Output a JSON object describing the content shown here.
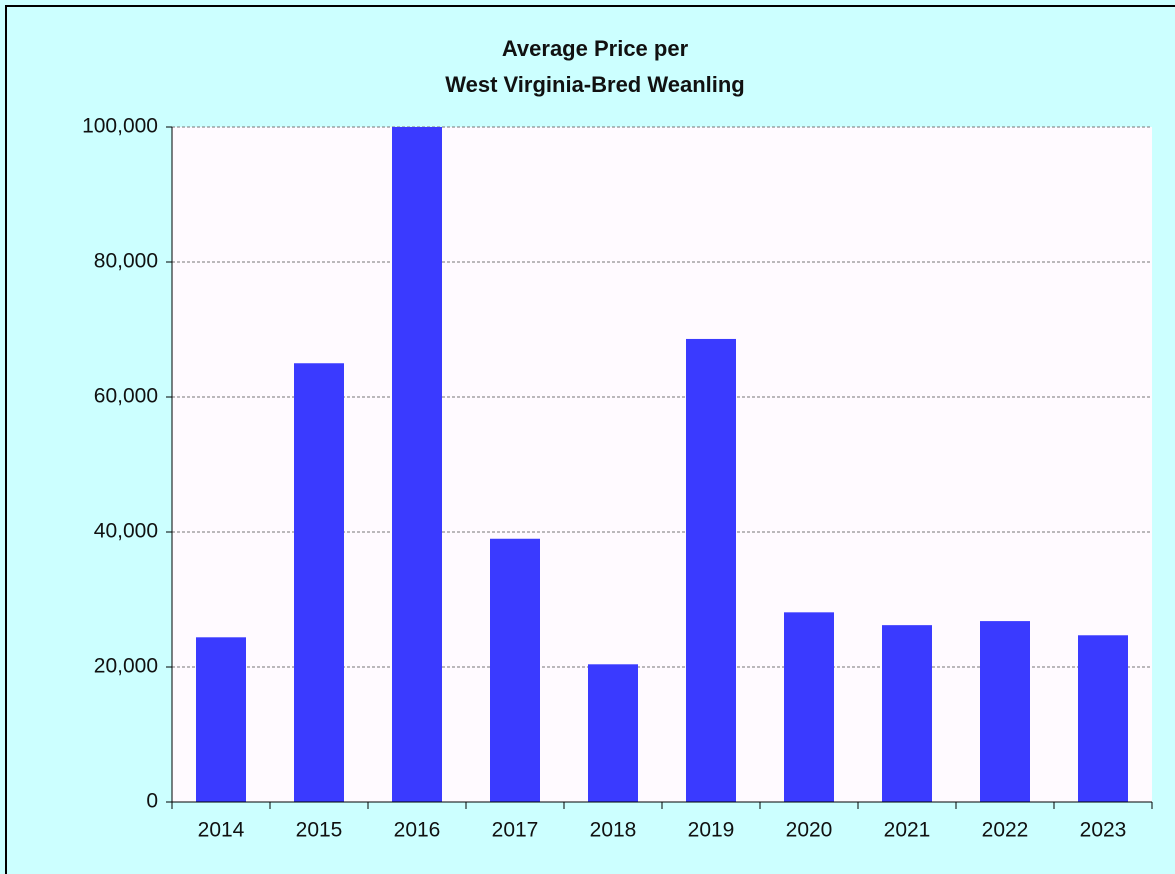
{
  "chart_data": {
    "type": "bar",
    "title": [
      "Average Price per",
      "West Virginia-Bred Weanling"
    ],
    "categories": [
      "2014",
      "2015",
      "2016",
      "2017",
      "2018",
      "2019",
      "2020",
      "2021",
      "2022",
      "2023"
    ],
    "values": [
      24400,
      65000,
      100000,
      39000,
      20400,
      68600,
      28100,
      26200,
      26800,
      24700
    ],
    "color": "#3a3aff",
    "ylim": [
      0,
      100000
    ],
    "yticks": [
      0,
      {
        "value": 20000,
        "label": "20,000"
      },
      {
        "value": 40000,
        "label": "40,000"
      },
      {
        "value": 60000,
        "label": "60,000"
      },
      {
        "value": 80000,
        "label": "80,000"
      },
      {
        "value": 100000,
        "label": "100,000"
      }
    ],
    "grid": true
  }
}
